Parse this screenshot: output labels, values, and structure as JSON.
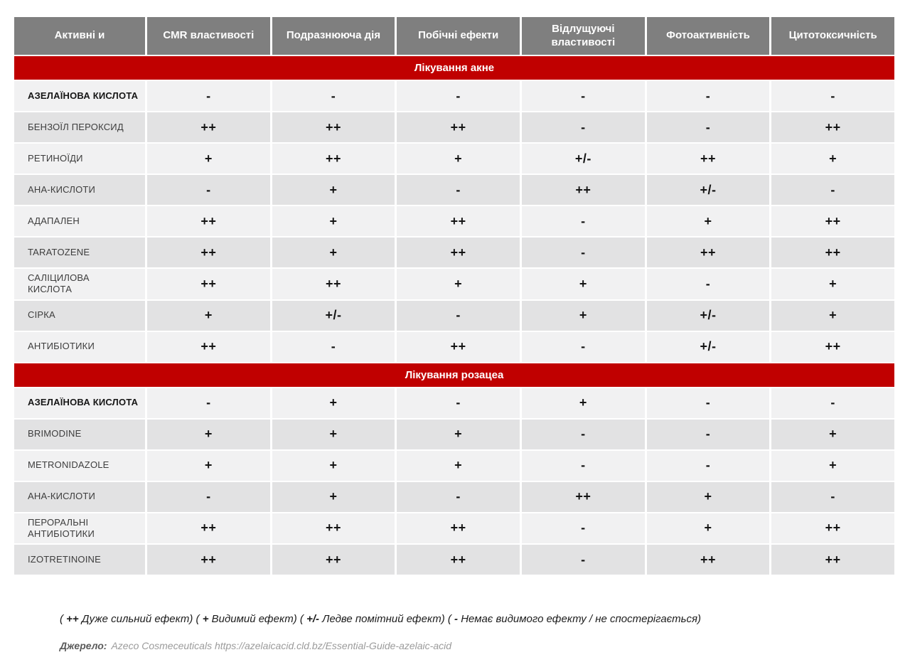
{
  "colors": {
    "header_bg": "#7f7f7f",
    "section_band_bg": "#c00000",
    "row_light": "#f1f1f2",
    "row_dark": "#e2e2e3",
    "header_text": "#ffffff"
  },
  "table": {
    "columns": [
      "Активні и",
      "CMR властивості",
      "Подразнююча дія",
      "Побічні ефекти",
      "Відлущуючі властивості",
      "Фотоактивність",
      "Цитотоксичність"
    ],
    "sections": [
      {
        "title": "Лікування акне",
        "rows": [
          {
            "name": "АЗЕЛАЇНОВА КИСЛОТА",
            "bold": true,
            "values": [
              "-",
              "-",
              "-",
              "-",
              "-",
              "-"
            ]
          },
          {
            "name": "БЕНЗОЇЛ ПЕРОКСИД",
            "bold": false,
            "values": [
              "++",
              "++",
              "++",
              "-",
              "-",
              "++"
            ]
          },
          {
            "name": "РЕТИНОЇДИ",
            "bold": false,
            "values": [
              "+",
              "++",
              "+",
              "+/-",
              "++",
              "+"
            ]
          },
          {
            "name": "АНА-КИСЛОТИ",
            "bold": false,
            "values": [
              "-",
              "+",
              "-",
              "++",
              "+/-",
              "-"
            ]
          },
          {
            "name": "АДАПАЛЕН",
            "bold": false,
            "values": [
              "++",
              "+",
              "++",
              "-",
              "+",
              "++"
            ]
          },
          {
            "name": "TARATOZENE",
            "bold": false,
            "values": [
              "++",
              "+",
              "++",
              "-",
              "++",
              "++"
            ]
          },
          {
            "name": "САЛІЦИЛОВА\nКИСЛОТА",
            "bold": false,
            "values": [
              "++",
              "++",
              "+",
              "+",
              "-",
              "+"
            ]
          },
          {
            "name": "СІРКА",
            "bold": false,
            "values": [
              "+",
              "+/-",
              "-",
              "+",
              "+/-",
              "+"
            ]
          },
          {
            "name": "АНТИБІОТИКИ",
            "bold": false,
            "values": [
              "++",
              "-",
              "++",
              "-",
              "+/-",
              "++"
            ]
          }
        ]
      },
      {
        "title": "Лікування розацеа",
        "rows": [
          {
            "name": "АЗЕЛАЇНОВА КИСЛОТА",
            "bold": true,
            "values": [
              "-",
              "+",
              "-",
              "+",
              "-",
              "-"
            ]
          },
          {
            "name": "BRIMODINE",
            "bold": false,
            "values": [
              "+",
              "+",
              "+",
              "-",
              "-",
              "+"
            ]
          },
          {
            "name": "METRONIDAZOLE",
            "bold": false,
            "values": [
              "+",
              "+",
              "+",
              "-",
              "-",
              "+"
            ]
          },
          {
            "name": "АНА-КИСЛОТИ",
            "bold": false,
            "values": [
              "-",
              "+",
              "-",
              "++",
              "+",
              "-"
            ]
          },
          {
            "name": "ПЕРОРАЛЬНІ\nАНТИБІОТИКИ",
            "bold": false,
            "values": [
              "++",
              "++",
              "++",
              "-",
              "+",
              "++"
            ]
          },
          {
            "name": "IZOTRETINOINE",
            "bold": false,
            "values": [
              "++",
              "++",
              "++",
              "-",
              "++",
              "++"
            ]
          }
        ]
      }
    ]
  },
  "footer": {
    "legend_items": [
      {
        "sym": "++",
        "text": "Дуже сильний ефект"
      },
      {
        "sym": "+",
        "text": "Видимий ефект"
      },
      {
        "sym": "+/-",
        "text": "Ледве помітний ефект"
      },
      {
        "sym": "-",
        "text": "Немає видимого ефекту / не спостерігається"
      }
    ],
    "source_label": "Джерело:",
    "source_text": "Azeco Cosmeceuticals https://azelaicacid.cld.bz/Essential-Guide-azelaic-acid"
  }
}
